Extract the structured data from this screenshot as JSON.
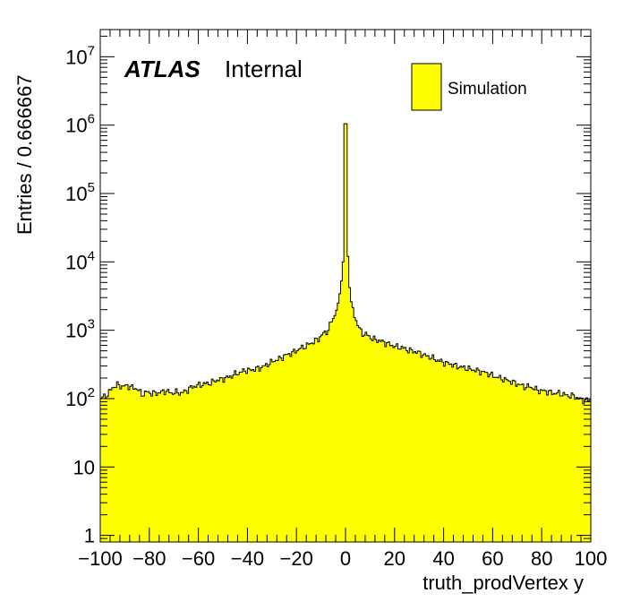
{
  "chart_data": {
    "type": "histogram",
    "experiment_label": "ATLAS",
    "status_label": "Internal",
    "xlabel": "truth_prodVertex y",
    "ylabel": "Entries / 0.666667",
    "bin_width": 0.666667,
    "xlim": [
      -100,
      100
    ],
    "ylim": [
      0.8,
      25000000
    ],
    "yscale": "log",
    "x_ticks": [
      {
        "value": -100,
        "label": "−100"
      },
      {
        "value": -80,
        "label": "−80"
      },
      {
        "value": -60,
        "label": "−60"
      },
      {
        "value": -40,
        "label": "−40"
      },
      {
        "value": -20,
        "label": "−20"
      },
      {
        "value": 0,
        "label": "0"
      },
      {
        "value": 20,
        "label": "20"
      },
      {
        "value": 40,
        "label": "40"
      },
      {
        "value": 60,
        "label": "60"
      },
      {
        "value": 80,
        "label": "80"
      },
      {
        "value": 100,
        "label": "100"
      }
    ],
    "y_ticks": [
      {
        "value": 1,
        "label": "1"
      },
      {
        "value": 10,
        "label": "10"
      },
      {
        "value": 100,
        "base": "10",
        "exp": "2"
      },
      {
        "value": 1000,
        "base": "10",
        "exp": "3"
      },
      {
        "value": 10000,
        "base": "10",
        "exp": "4"
      },
      {
        "value": 100000,
        "base": "10",
        "exp": "5"
      },
      {
        "value": 1000000,
        "base": "10",
        "exp": "6"
      },
      {
        "value": 10000000,
        "base": "10",
        "exp": "7"
      }
    ],
    "legend": {
      "position": "top-right",
      "entries": [
        {
          "label": "Simulation",
          "color": "#ffff00"
        }
      ]
    },
    "series": [
      {
        "name": "Simulation",
        "fill_color": "#ffff00",
        "line_color": "#000000",
        "points": [
          [
            -100,
            100
          ],
          [
            -97,
            115
          ],
          [
            -95,
            145
          ],
          [
            -93,
            160
          ],
          [
            -91,
            150
          ],
          [
            -89,
            155
          ],
          [
            -87,
            145
          ],
          [
            -85,
            140
          ],
          [
            -83,
            115
          ],
          [
            -81,
            125
          ],
          [
            -79,
            120
          ],
          [
            -77,
            120
          ],
          [
            -75,
            125
          ],
          [
            -73,
            130
          ],
          [
            -71,
            120
          ],
          [
            -69,
            125
          ],
          [
            -67,
            120
          ],
          [
            -65,
            130
          ],
          [
            -63,
            145
          ],
          [
            -61,
            155
          ],
          [
            -59,
            160
          ],
          [
            -57,
            165
          ],
          [
            -55,
            170
          ],
          [
            -53,
            185
          ],
          [
            -51,
            190
          ],
          [
            -49,
            200
          ],
          [
            -47,
            210
          ],
          [
            -45,
            230
          ],
          [
            -43,
            240
          ],
          [
            -41,
            260
          ],
          [
            -39,
            260
          ],
          [
            -37,
            270
          ],
          [
            -35,
            280
          ],
          [
            -33,
            300
          ],
          [
            -31,
            330
          ],
          [
            -29,
            360
          ],
          [
            -27,
            380
          ],
          [
            -25,
            420
          ],
          [
            -23,
            450
          ],
          [
            -21,
            480
          ],
          [
            -19,
            530
          ],
          [
            -17,
            570
          ],
          [
            -15,
            620
          ],
          [
            -13,
            680
          ],
          [
            -11,
            750
          ],
          [
            -9,
            900
          ],
          [
            -7,
            1000
          ],
          [
            -6,
            1300
          ],
          [
            -5,
            1500
          ],
          [
            -4,
            1800
          ],
          [
            -3,
            2500
          ],
          [
            -2,
            4000
          ],
          [
            -1.5,
            6000
          ],
          [
            -1,
            10000
          ],
          [
            -0.5,
            800000
          ],
          [
            0,
            1800000
          ],
          [
            0.5,
            800000
          ],
          [
            1,
            12000
          ],
          [
            1.5,
            5000
          ],
          [
            2,
            3000
          ],
          [
            3,
            2000
          ],
          [
            4,
            1500
          ],
          [
            5,
            1200
          ],
          [
            6,
            1000
          ],
          [
            7,
            900
          ],
          [
            9,
            850
          ],
          [
            11,
            750
          ],
          [
            13,
            720
          ],
          [
            15,
            680
          ],
          [
            17,
            640
          ],
          [
            19,
            600
          ],
          [
            21,
            570
          ],
          [
            23,
            560
          ],
          [
            25,
            520
          ],
          [
            27,
            500
          ],
          [
            29,
            480
          ],
          [
            31,
            450
          ],
          [
            33,
            420
          ],
          [
            35,
            400
          ],
          [
            37,
            370
          ],
          [
            39,
            350
          ],
          [
            41,
            330
          ],
          [
            43,
            320
          ],
          [
            45,
            300
          ],
          [
            47,
            290
          ],
          [
            49,
            280
          ],
          [
            51,
            270
          ],
          [
            53,
            260
          ],
          [
            55,
            250
          ],
          [
            57,
            240
          ],
          [
            59,
            225
          ],
          [
            61,
            210
          ],
          [
            63,
            200
          ],
          [
            65,
            190
          ],
          [
            67,
            180
          ],
          [
            69,
            170
          ],
          [
            71,
            160
          ],
          [
            73,
            150
          ],
          [
            75,
            150
          ],
          [
            77,
            140
          ],
          [
            79,
            130
          ],
          [
            81,
            130
          ],
          [
            83,
            125
          ],
          [
            85,
            120
          ],
          [
            87,
            120
          ],
          [
            89,
            115
          ],
          [
            91,
            110
          ],
          [
            93,
            110
          ],
          [
            95,
            100
          ],
          [
            97,
            95
          ],
          [
            99,
            95
          ]
        ]
      }
    ]
  }
}
